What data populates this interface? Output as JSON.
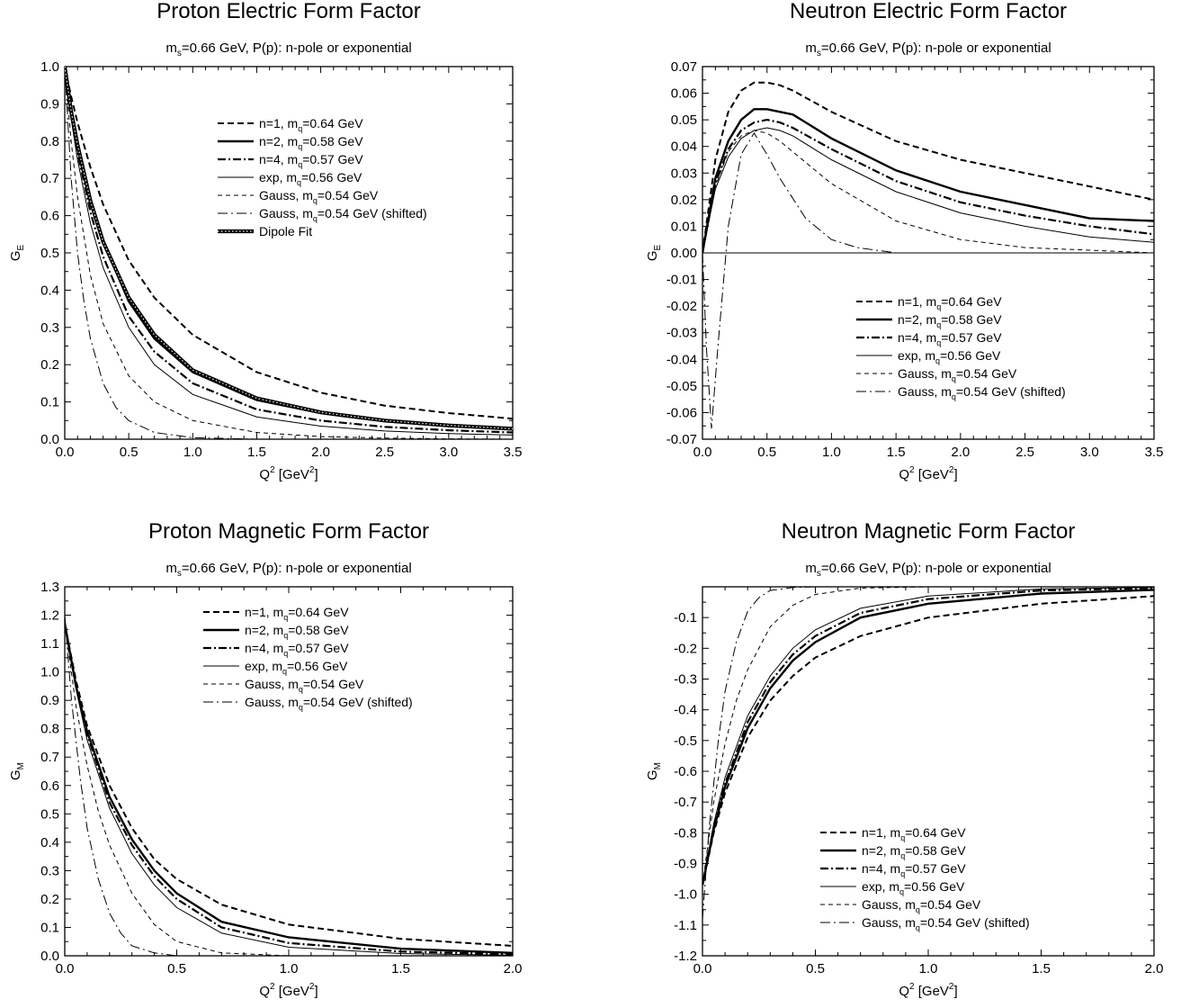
{
  "chart_data": [
    {
      "type": "line",
      "title": "Proton Electric Form Factor",
      "subtitle_main": "m",
      "subtitle_sub": "s",
      "subtitle_rest": "=0.66 GeV, P(p): n-pole or exponential",
      "ylabel_main": "G",
      "ylabel_sub": "E",
      "xlabel_pre": "Q",
      "xlabel_sup": "2",
      "xlabel_mid": " [GeV",
      "xlabel_sup2": "2",
      "xlabel_post": "]",
      "xlim": [
        0,
        3.5
      ],
      "ylim": [
        0,
        1.0
      ],
      "xticks": [
        "0.0",
        "0.5",
        "1.0",
        "1.5",
        "2.0",
        "2.5",
        "3.0",
        "3.5"
      ],
      "yticks": [
        "0.0",
        "0.1",
        "0.2",
        "0.3",
        "0.4",
        "0.5",
        "0.6",
        "0.7",
        "0.8",
        "0.9",
        "1.0"
      ],
      "legend_placement": "top-right",
      "series": [
        {
          "legend_pre": "n=1, m",
          "legend_sub": "q",
          "legend_post": "=0.64 GeV",
          "x": [
            0,
            0.05,
            0.1,
            0.2,
            0.3,
            0.5,
            0.7,
            1.0,
            1.5,
            2.0,
            2.5,
            3.0,
            3.5
          ],
          "values": [
            1.0,
            0.92,
            0.85,
            0.73,
            0.63,
            0.48,
            0.38,
            0.28,
            0.18,
            0.125,
            0.09,
            0.07,
            0.055
          ]
        },
        {
          "legend_pre": "n=2, m",
          "legend_sub": "q",
          "legend_post": "=0.58 GeV",
          "x": [
            0,
            0.05,
            0.1,
            0.2,
            0.3,
            0.5,
            0.7,
            1.0,
            1.5,
            2.0,
            2.5,
            3.0,
            3.5
          ],
          "values": [
            1.0,
            0.88,
            0.79,
            0.64,
            0.53,
            0.37,
            0.27,
            0.18,
            0.105,
            0.07,
            0.048,
            0.035,
            0.027
          ]
        },
        {
          "legend_pre": "n=4, m",
          "legend_sub": "q",
          "legend_post": "=0.57 GeV",
          "x": [
            0,
            0.05,
            0.1,
            0.2,
            0.3,
            0.5,
            0.7,
            1.0,
            1.5,
            2.0,
            2.5,
            3.0,
            3.5
          ],
          "values": [
            1.0,
            0.87,
            0.77,
            0.61,
            0.49,
            0.33,
            0.235,
            0.15,
            0.08,
            0.05,
            0.033,
            0.024,
            0.018
          ]
        },
        {
          "legend_pre": "exp,  m",
          "legend_sub": "q",
          "legend_post": "=0.56 GeV",
          "x": [
            0,
            0.05,
            0.1,
            0.2,
            0.3,
            0.5,
            0.7,
            1.0,
            1.5,
            2.0,
            2.5,
            3.0,
            3.5
          ],
          "values": [
            1.0,
            0.86,
            0.75,
            0.58,
            0.46,
            0.3,
            0.2,
            0.12,
            0.06,
            0.035,
            0.022,
            0.015,
            0.011
          ]
        },
        {
          "legend_pre": "Gauss, m",
          "legend_sub": "q",
          "legend_post": "=0.54 GeV",
          "x": [
            0,
            0.05,
            0.1,
            0.2,
            0.3,
            0.5,
            0.7,
            1.0,
            1.5,
            2.0,
            2.5,
            3.0,
            3.5
          ],
          "values": [
            1.0,
            0.8,
            0.65,
            0.44,
            0.31,
            0.17,
            0.1,
            0.05,
            0.018,
            0.007,
            0.003,
            0.001,
            0.0
          ]
        },
        {
          "legend_pre": "Gauss, m",
          "legend_sub": "q",
          "legend_post": "=0.54 GeV (shifted)",
          "x": [
            0,
            0.05,
            0.1,
            0.15,
            0.2,
            0.3,
            0.4,
            0.5,
            0.7,
            1.0,
            1.5,
            2.0,
            3.5
          ],
          "values": [
            1.0,
            0.7,
            0.5,
            0.37,
            0.27,
            0.15,
            0.085,
            0.05,
            0.018,
            0.004,
            0.0,
            0.0,
            0.0
          ]
        },
        {
          "legend_pre": "Dipole Fit",
          "legend_sub": "",
          "legend_post": "",
          "x": [
            0,
            0.05,
            0.1,
            0.2,
            0.3,
            0.5,
            0.7,
            1.0,
            1.5,
            2.0,
            2.5,
            3.0,
            3.5
          ],
          "values": [
            1.0,
            0.88,
            0.79,
            0.64,
            0.53,
            0.38,
            0.28,
            0.185,
            0.11,
            0.072,
            0.05,
            0.037,
            0.028
          ]
        }
      ]
    },
    {
      "type": "line",
      "title": "Neutron Electric Form Factor",
      "subtitle_main": "m",
      "subtitle_sub": "s",
      "subtitle_rest": "=0.66 GeV, P(p): n-pole or exponential",
      "ylabel_main": "G",
      "ylabel_sub": "E",
      "xlabel_pre": "Q",
      "xlabel_sup": "2",
      "xlabel_mid": " [GeV",
      "xlabel_sup2": "2",
      "xlabel_post": "]",
      "xlim": [
        0,
        3.5
      ],
      "ylim": [
        -0.07,
        0.07
      ],
      "xticks": [
        "0.0",
        "0.5",
        "1.0",
        "1.5",
        "2.0",
        "2.5",
        "3.0",
        "3.5"
      ],
      "yticks": [
        "-0.07",
        "-0.06",
        "-0.05",
        "-0.04",
        "-0.03",
        "-0.02",
        "-0.01",
        "0.00",
        "0.01",
        "0.02",
        "0.03",
        "0.04",
        "0.05",
        "0.06",
        "0.07"
      ],
      "legend_placement": "bottom-right",
      "series": [
        {
          "legend_pre": "n=1, m",
          "legend_sub": "q",
          "legend_post": "=0.64 GeV",
          "x": [
            0,
            0.1,
            0.2,
            0.3,
            0.4,
            0.5,
            0.6,
            0.7,
            1.0,
            1.5,
            2.0,
            2.5,
            3.0,
            3.5
          ],
          "values": [
            0.0,
            0.035,
            0.053,
            0.061,
            0.064,
            0.064,
            0.063,
            0.061,
            0.053,
            0.042,
            0.035,
            0.03,
            0.025,
            0.02
          ]
        },
        {
          "legend_pre": "n=2, m",
          "legend_sub": "q",
          "legend_post": "=0.58 GeV",
          "x": [
            0,
            0.1,
            0.2,
            0.3,
            0.4,
            0.5,
            0.6,
            0.7,
            1.0,
            1.5,
            2.0,
            2.5,
            3.0,
            3.5
          ],
          "values": [
            0.0,
            0.028,
            0.042,
            0.05,
            0.054,
            0.054,
            0.053,
            0.052,
            0.043,
            0.031,
            0.023,
            0.018,
            0.013,
            0.012
          ]
        },
        {
          "legend_pre": "n=4, m",
          "legend_sub": "q",
          "legend_post": "=0.57 GeV",
          "x": [
            0,
            0.1,
            0.2,
            0.3,
            0.4,
            0.5,
            0.6,
            0.7,
            1.0,
            1.5,
            2.0,
            2.5,
            3.0,
            3.5
          ],
          "values": [
            0.0,
            0.026,
            0.039,
            0.046,
            0.049,
            0.05,
            0.049,
            0.047,
            0.039,
            0.027,
            0.019,
            0.014,
            0.01,
            0.007
          ]
        },
        {
          "legend_pre": "exp,  m",
          "legend_sub": "q",
          "legend_post": "=0.56 GeV",
          "x": [
            0,
            0.1,
            0.2,
            0.3,
            0.4,
            0.5,
            0.6,
            0.7,
            1.0,
            1.5,
            2.0,
            2.5,
            3.0,
            3.5
          ],
          "values": [
            0.0,
            0.024,
            0.036,
            0.043,
            0.046,
            0.047,
            0.046,
            0.044,
            0.035,
            0.023,
            0.015,
            0.01,
            0.006,
            0.004
          ]
        },
        {
          "legend_pre": "Gauss, m",
          "legend_sub": "q",
          "legend_post": "=0.54 GeV",
          "x": [
            0,
            0.1,
            0.2,
            0.3,
            0.4,
            0.5,
            0.6,
            0.7,
            1.0,
            1.5,
            2.0,
            2.5,
            3.0,
            3.5
          ],
          "values": [
            0.0,
            0.025,
            0.038,
            0.044,
            0.046,
            0.045,
            0.042,
            0.038,
            0.026,
            0.012,
            0.005,
            0.002,
            0.001,
            0.0
          ]
        },
        {
          "legend_pre": "Gauss, m",
          "legend_sub": "q",
          "legend_post": "=0.54 GeV (shifted)",
          "x": [
            0,
            0.03,
            0.07,
            0.12,
            0.2,
            0.3,
            0.4,
            0.5,
            0.6,
            0.8,
            1.0,
            1.2,
            1.5,
            2.0,
            3.5
          ],
          "values": [
            0.0,
            -0.035,
            -0.066,
            -0.035,
            0.01,
            0.037,
            0.045,
            0.037,
            0.028,
            0.013,
            0.005,
            0.002,
            0.0,
            0.0,
            0.0
          ]
        }
      ]
    },
    {
      "type": "line",
      "title": "Proton Magnetic Form Factor",
      "subtitle_main": "m",
      "subtitle_sub": "s",
      "subtitle_rest": "=0.66 GeV, P(p): n-pole or exponential",
      "ylabel_main": "G",
      "ylabel_sub": "M",
      "xlabel_pre": "Q",
      "xlabel_sup": "2",
      "xlabel_mid": " [GeV",
      "xlabel_sup2": "2",
      "xlabel_post": "]",
      "xlim": [
        0,
        2.0
      ],
      "ylim": [
        0,
        1.3
      ],
      "xticks": [
        "0.0",
        "0.5",
        "1.0",
        "1.5",
        "2.0"
      ],
      "yticks": [
        "0.0",
        "0.1",
        "0.2",
        "0.3",
        "0.4",
        "0.5",
        "0.6",
        "0.7",
        "0.8",
        "0.9",
        "1.0",
        "1.1",
        "1.2",
        "1.3"
      ],
      "legend_placement": "top-right",
      "series": [
        {
          "legend_pre": "n=1, m",
          "legend_sub": "q",
          "legend_post": "=0.64 GeV",
          "x": [
            0,
            0.05,
            0.1,
            0.2,
            0.3,
            0.4,
            0.5,
            0.7,
            1.0,
            1.5,
            2.0
          ],
          "values": [
            1.17,
            0.97,
            0.81,
            0.6,
            0.45,
            0.34,
            0.27,
            0.18,
            0.11,
            0.06,
            0.035
          ]
        },
        {
          "legend_pre": "n=2, m",
          "legend_sub": "q",
          "legend_post": "=0.58 GeV",
          "x": [
            0,
            0.05,
            0.1,
            0.2,
            0.3,
            0.4,
            0.5,
            0.7,
            1.0,
            1.5,
            2.0
          ],
          "values": [
            1.17,
            0.95,
            0.79,
            0.56,
            0.41,
            0.3,
            0.22,
            0.12,
            0.065,
            0.025,
            0.01
          ]
        },
        {
          "legend_pre": "n=4, m",
          "legend_sub": "q",
          "legend_post": "=0.57 GeV",
          "x": [
            0,
            0.05,
            0.1,
            0.2,
            0.3,
            0.4,
            0.5,
            0.7,
            1.0,
            1.5,
            2.0
          ],
          "values": [
            1.17,
            0.95,
            0.78,
            0.54,
            0.39,
            0.28,
            0.2,
            0.1,
            0.045,
            0.015,
            0.005
          ]
        },
        {
          "legend_pre": "exp,  m",
          "legend_sub": "q",
          "legend_post": "=0.56 GeV",
          "x": [
            0,
            0.05,
            0.1,
            0.2,
            0.3,
            0.4,
            0.5,
            0.7,
            1.0,
            1.5,
            2.0
          ],
          "values": [
            1.17,
            0.94,
            0.76,
            0.52,
            0.36,
            0.25,
            0.17,
            0.08,
            0.03,
            0.008,
            0.002
          ]
        },
        {
          "legend_pre": "Gauss, m",
          "legend_sub": "q",
          "legend_post": "=0.54 GeV",
          "x": [
            0,
            0.05,
            0.1,
            0.15,
            0.2,
            0.3,
            0.4,
            0.5,
            0.7,
            1.0,
            2.0
          ],
          "values": [
            1.17,
            0.88,
            0.67,
            0.51,
            0.39,
            0.22,
            0.11,
            0.05,
            0.01,
            0.0,
            0.0
          ]
        },
        {
          "legend_pre": "Gauss, m",
          "legend_sub": "q",
          "legend_post": "=0.54 GeV (shifted)",
          "x": [
            0,
            0.03,
            0.07,
            0.1,
            0.15,
            0.2,
            0.25,
            0.3,
            0.4,
            0.5,
            0.7,
            2.0
          ],
          "values": [
            1.2,
            0.9,
            0.62,
            0.45,
            0.27,
            0.15,
            0.08,
            0.035,
            0.01,
            0.0,
            0.0,
            0.0
          ]
        }
      ]
    },
    {
      "type": "line",
      "title": "Neutron Magnetic Form Factor",
      "subtitle_main": "m",
      "subtitle_sub": "s",
      "subtitle_rest": "=0.66 GeV, P(p): n-pole or exponential",
      "ylabel_main": "G",
      "ylabel_sub": "M",
      "xlabel_pre": "Q",
      "xlabel_sup": "2",
      "xlabel_mid": " [GeV",
      "xlabel_sup2": "2",
      "xlabel_post": "]",
      "xlim": [
        0,
        2.0
      ],
      "ylim": [
        -1.2,
        0.0
      ],
      "xticks": [
        "0.0",
        "0.5",
        "1.0",
        "1.5",
        "2.0"
      ],
      "yticks": [
        "-1.2",
        "-1.1",
        "-1.0",
        "-0.9",
        "-0.8",
        "-0.7",
        "-0.6",
        "-0.5",
        "-0.4",
        "-0.3",
        "-0.2",
        "-0.1"
      ],
      "legend_placement": "bottom-right",
      "series": [
        {
          "legend_pre": "n=1, m",
          "legend_sub": "q",
          "legend_post": "=0.64 GeV",
          "x": [
            0,
            0.05,
            0.1,
            0.2,
            0.3,
            0.4,
            0.5,
            0.7,
            1.0,
            1.5,
            2.0
          ],
          "values": [
            -0.97,
            -0.8,
            -0.67,
            -0.49,
            -0.37,
            -0.29,
            -0.23,
            -0.16,
            -0.1,
            -0.055,
            -0.03
          ]
        },
        {
          "legend_pre": "n=2, m",
          "legend_sub": "q",
          "legend_post": "=0.58 GeV",
          "x": [
            0,
            0.05,
            0.1,
            0.2,
            0.3,
            0.4,
            0.5,
            0.7,
            1.0,
            1.5,
            2.0
          ],
          "values": [
            -0.97,
            -0.79,
            -0.65,
            -0.46,
            -0.33,
            -0.24,
            -0.18,
            -0.1,
            -0.055,
            -0.022,
            -0.01
          ]
        },
        {
          "legend_pre": "n=4, m",
          "legend_sub": "q",
          "legend_post": "=0.57 GeV",
          "x": [
            0,
            0.05,
            0.1,
            0.2,
            0.3,
            0.4,
            0.5,
            0.7,
            1.0,
            1.5,
            2.0
          ],
          "values": [
            -0.97,
            -0.78,
            -0.64,
            -0.44,
            -0.31,
            -0.22,
            -0.16,
            -0.085,
            -0.04,
            -0.012,
            -0.004
          ]
        },
        {
          "legend_pre": "exp,  m",
          "legend_sub": "q",
          "legend_post": "=0.56 GeV",
          "x": [
            0,
            0.05,
            0.1,
            0.2,
            0.3,
            0.4,
            0.5,
            0.7,
            1.0,
            1.5,
            2.0
          ],
          "values": [
            -0.97,
            -0.77,
            -0.62,
            -0.42,
            -0.29,
            -0.2,
            -0.14,
            -0.07,
            -0.03,
            -0.007,
            -0.002
          ]
        },
        {
          "legend_pre": "Gauss, m",
          "legend_sub": "q",
          "legend_post": "=0.54 GeV",
          "x": [
            0,
            0.05,
            0.1,
            0.15,
            0.2,
            0.3,
            0.4,
            0.5,
            0.7,
            1.0,
            2.0
          ],
          "values": [
            -0.97,
            -0.7,
            -0.51,
            -0.37,
            -0.27,
            -0.13,
            -0.06,
            -0.025,
            -0.004,
            0.0,
            0.0
          ]
        },
        {
          "legend_pre": "Gauss, m",
          "legend_sub": "q",
          "legend_post": "=0.54 GeV (shifted)",
          "x": [
            0,
            0.03,
            0.07,
            0.1,
            0.15,
            0.2,
            0.25,
            0.3,
            0.4,
            0.5,
            2.0
          ],
          "values": [
            -1.08,
            -0.78,
            -0.5,
            -0.34,
            -0.18,
            -0.08,
            -0.035,
            -0.012,
            -0.002,
            0.0,
            0.0
          ]
        }
      ]
    }
  ]
}
